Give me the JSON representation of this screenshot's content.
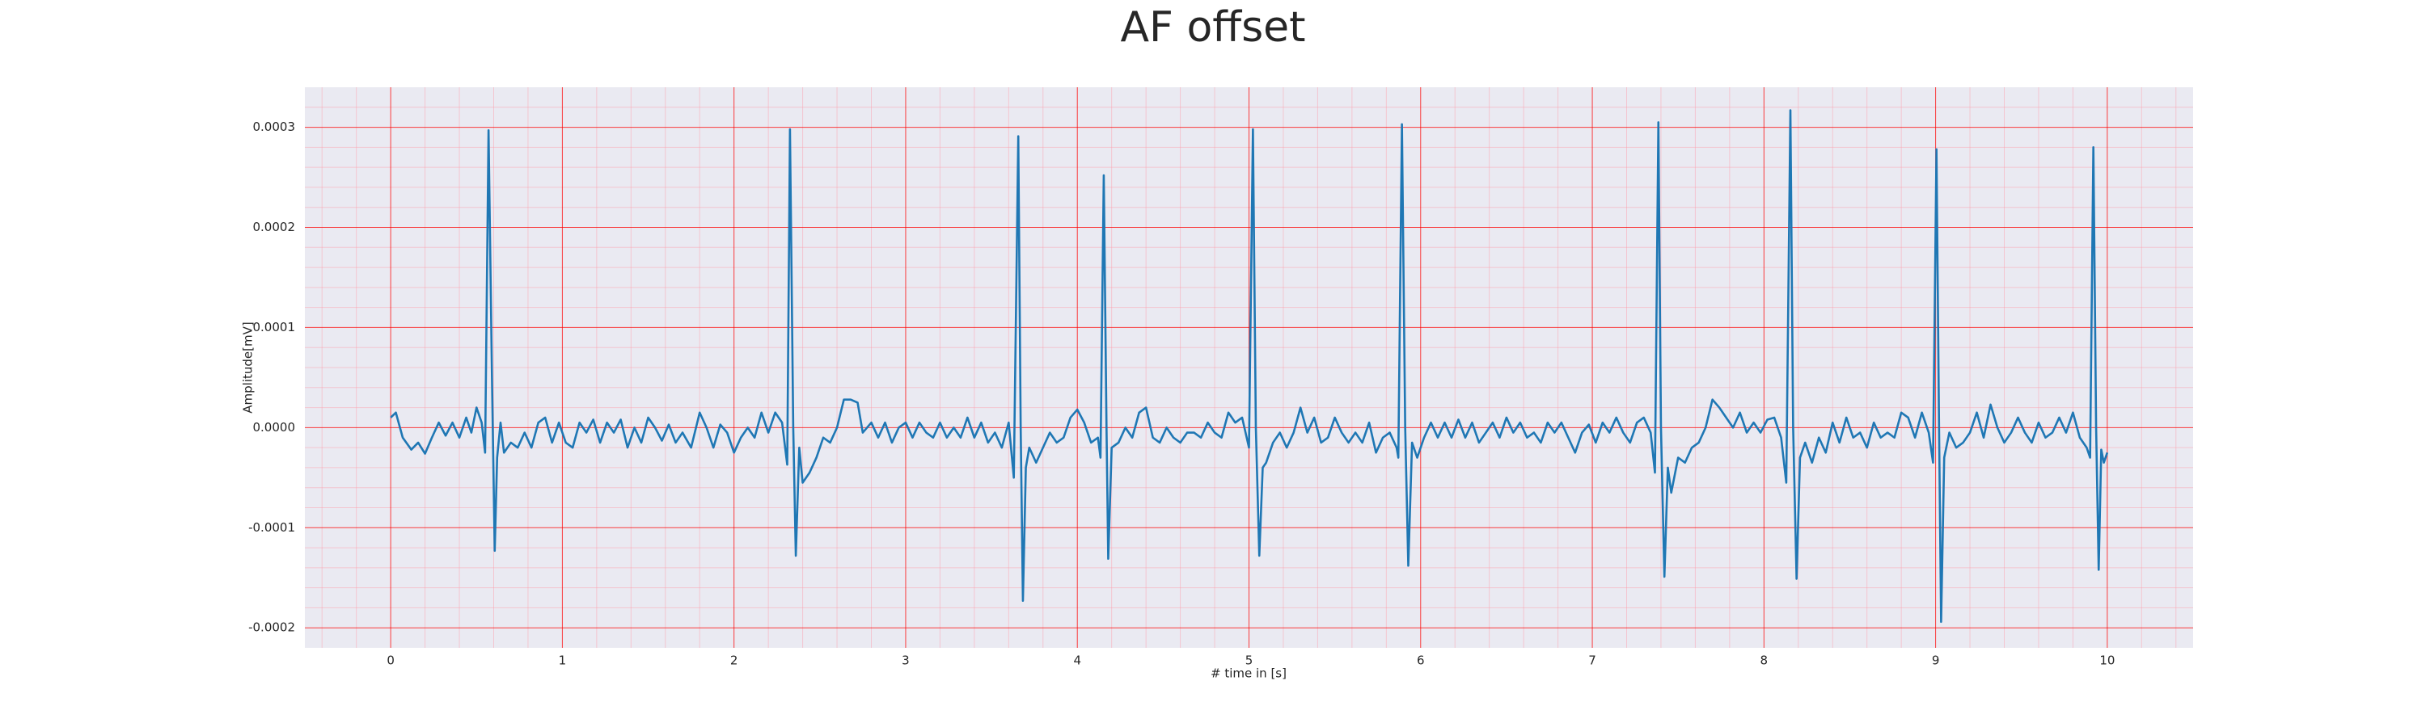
{
  "chart_data": {
    "type": "line",
    "title": "AF offset",
    "x_label": "# time in [s]",
    "y_label": "Amplitude[mV]",
    "color": "#1f77b4",
    "grid": true,
    "minor_grid": true,
    "xlim": [
      -0.5,
      10.5
    ],
    "ylim": [
      -0.00022,
      0.00034
    ],
    "xticks": [
      0,
      1,
      2,
      3,
      4,
      5,
      6,
      7,
      8,
      9,
      10
    ],
    "yticks": [
      -0.0002,
      -0.0001,
      {
        "value": 0,
        "label": "0.0000"
      },
      0.0001,
      0.0002,
      0.0003
    ],
    "x": [
      0,
      0.03,
      0.07,
      0.12,
      0.16,
      0.2,
      0.24,
      0.28,
      0.32,
      0.36,
      0.4,
      0.44,
      0.47,
      0.5,
      0.53,
      0.55,
      0.57,
      0.59,
      0.606,
      0.62,
      0.64,
      0.66,
      0.7,
      0.74,
      0.78,
      0.82,
      0.86,
      0.9,
      0.94,
      0.98,
      1.02,
      1.06,
      1.1,
      1.14,
      1.18,
      1.22,
      1.26,
      1.3,
      1.34,
      1.38,
      1.42,
      1.46,
      1.5,
      1.54,
      1.58,
      1.62,
      1.66,
      1.7,
      1.75,
      1.8,
      1.84,
      1.88,
      1.92,
      1.96,
      2.0,
      2.04,
      2.08,
      2.12,
      2.16,
      2.2,
      2.24,
      2.28,
      2.31,
      2.326,
      2.345,
      2.36,
      2.38,
      2.4,
      2.44,
      2.48,
      2.52,
      2.56,
      2.6,
      2.64,
      2.68,
      2.72,
      2.75,
      2.8,
      2.84,
      2.88,
      2.92,
      2.96,
      3.0,
      3.04,
      3.08,
      3.12,
      3.16,
      3.2,
      3.24,
      3.28,
      3.32,
      3.36,
      3.4,
      3.44,
      3.48,
      3.52,
      3.56,
      3.6,
      3.63,
      3.656,
      3.67,
      3.683,
      3.7,
      3.72,
      3.76,
      3.8,
      3.84,
      3.88,
      3.92,
      3.96,
      4.0,
      4.04,
      4.08,
      4.12,
      4.135,
      4.154,
      4.17,
      4.18,
      4.2,
      4.24,
      4.28,
      4.32,
      4.36,
      4.4,
      4.44,
      4.48,
      4.52,
      4.56,
      4.6,
      4.64,
      4.68,
      4.72,
      4.76,
      4.8,
      4.84,
      4.88,
      4.92,
      4.96,
      5.0,
      5.023,
      5.04,
      5.06,
      5.08,
      5.1,
      5.14,
      5.18,
      5.22,
      5.26,
      5.3,
      5.34,
      5.38,
      5.42,
      5.46,
      5.5,
      5.54,
      5.58,
      5.62,
      5.66,
      5.7,
      5.74,
      5.78,
      5.82,
      5.86,
      5.87,
      5.891,
      5.91,
      5.928,
      5.95,
      5.98,
      6.02,
      6.06,
      6.1,
      6.14,
      6.18,
      6.22,
      6.26,
      6.3,
      6.34,
      6.38,
      6.42,
      6.46,
      6.5,
      6.54,
      6.58,
      6.62,
      6.66,
      6.7,
      6.74,
      6.78,
      6.82,
      6.86,
      6.9,
      6.94,
      6.98,
      7.02,
      7.06,
      7.1,
      7.14,
      7.18,
      7.22,
      7.26,
      7.3,
      7.34,
      7.365,
      7.385,
      7.4,
      7.42,
      7.44,
      7.46,
      7.5,
      7.54,
      7.58,
      7.62,
      7.66,
      7.7,
      7.74,
      7.78,
      7.82,
      7.86,
      7.9,
      7.94,
      7.98,
      8.02,
      8.06,
      8.1,
      8.13,
      8.154,
      8.17,
      8.19,
      8.21,
      8.24,
      8.28,
      8.32,
      8.36,
      8.4,
      8.44,
      8.48,
      8.52,
      8.56,
      8.6,
      8.64,
      8.68,
      8.72,
      8.76,
      8.8,
      8.84,
      8.88,
      8.92,
      8.96,
      8.985,
      9.005,
      9.02,
      9.032,
      9.05,
      9.08,
      9.12,
      9.16,
      9.2,
      9.24,
      9.28,
      9.32,
      9.36,
      9.4,
      9.44,
      9.48,
      9.52,
      9.56,
      9.6,
      9.64,
      9.68,
      9.72,
      9.76,
      9.8,
      9.84,
      9.88,
      9.9,
      9.919,
      9.935,
      9.95,
      9.965,
      9.98,
      10.0
    ],
    "values": [
      1e-05,
      1.5e-05,
      -1e-05,
      -2.2e-05,
      -1.5e-05,
      -2.6e-05,
      -1e-05,
      5e-06,
      -8e-06,
      5e-06,
      -1e-05,
      1e-05,
      -5e-06,
      2e-05,
      5e-06,
      -2.5e-05,
      0.000297,
      5e-05,
      -0.000123,
      -3e-05,
      5e-06,
      -2.5e-05,
      -1.5e-05,
      -2e-05,
      -5e-06,
      -2e-05,
      5e-06,
      1e-05,
      -1.5e-05,
      5e-06,
      -1.5e-05,
      -2e-05,
      5e-06,
      -5e-06,
      8e-06,
      -1.5e-05,
      5e-06,
      -5e-06,
      8e-06,
      -2e-05,
      0,
      -1.5e-05,
      1e-05,
      0,
      -1.3e-05,
      3e-06,
      -1.5e-05,
      -5e-06,
      -2e-05,
      1.5e-05,
      0,
      -2e-05,
      3e-06,
      -5e-06,
      -2.5e-05,
      -1e-05,
      0,
      -1e-05,
      1.5e-05,
      -5e-06,
      1.5e-05,
      5e-06,
      -3.7e-05,
      0.000298,
      0,
      -0.000128,
      -2e-05,
      -5.5e-05,
      -4.5e-05,
      -3e-05,
      -1e-05,
      -1.5e-05,
      0,
      2.8e-05,
      2.8e-05,
      2.5e-05,
      -5e-06,
      5e-06,
      -1e-05,
      5e-06,
      -1.5e-05,
      0,
      5e-06,
      -1e-05,
      5e-06,
      -5e-06,
      -1e-05,
      5e-06,
      -1e-05,
      0,
      -1e-05,
      1e-05,
      -1e-05,
      5e-06,
      -1.5e-05,
      -5e-06,
      -2e-05,
      5e-06,
      -5e-05,
      0.000291,
      0,
      -0.000173,
      -4e-05,
      -2e-05,
      -3.5e-05,
      -2e-05,
      -5e-06,
      -1.5e-05,
      -1e-05,
      1e-05,
      1.8e-05,
      5e-06,
      -1.5e-05,
      -1e-05,
      -3e-05,
      0.000252,
      0,
      -0.000131,
      -2e-05,
      -1.5e-05,
      0,
      -1e-05,
      1.5e-05,
      2e-05,
      -1e-05,
      -1.5e-05,
      0,
      -1e-05,
      -1.5e-05,
      -5e-06,
      -5e-06,
      -1e-05,
      5e-06,
      -5e-06,
      -1e-05,
      1.5e-05,
      5e-06,
      1e-05,
      -2e-05,
      0.000298,
      0,
      -0.000128,
      -4e-05,
      -3.5e-05,
      -1.5e-05,
      -5e-06,
      -2e-05,
      -5e-06,
      2e-05,
      -5e-06,
      1e-05,
      -1.5e-05,
      -1e-05,
      1e-05,
      -5e-06,
      -1.5e-05,
      -5e-06,
      -1.5e-05,
      5e-06,
      -2.5e-05,
      -1e-05,
      -5e-06,
      -2e-05,
      -3e-05,
      0.000303,
      0,
      -0.000138,
      -1.5e-05,
      -3e-05,
      -1e-05,
      5e-06,
      -1e-05,
      5e-06,
      -1e-05,
      8e-06,
      -1e-05,
      5e-06,
      -1.5e-05,
      -5e-06,
      5e-06,
      -1e-05,
      1e-05,
      -5e-06,
      5e-06,
      -1e-05,
      -5e-06,
      -1.5e-05,
      5e-06,
      -5e-06,
      5e-06,
      -1e-05,
      -2.5e-05,
      -5e-06,
      3e-06,
      -1.5e-05,
      5e-06,
      -5e-06,
      1e-05,
      -5e-06,
      -1.5e-05,
      5e-06,
      1e-05,
      -5e-06,
      -4.5e-05,
      0.000305,
      0,
      -0.000149,
      -4e-05,
      -6.5e-05,
      -3e-05,
      -3.5e-05,
      -2e-05,
      -1.5e-05,
      0,
      2.8e-05,
      2e-05,
      1e-05,
      0,
      1.5e-05,
      -5e-06,
      5e-06,
      -5e-06,
      8e-06,
      1e-05,
      -1e-05,
      -5.5e-05,
      0.000317,
      0,
      -0.000151,
      -3e-05,
      -1.5e-05,
      -3.5e-05,
      -1e-05,
      -2.5e-05,
      5e-06,
      -1.5e-05,
      1e-05,
      -1e-05,
      -5e-06,
      -2e-05,
      5e-06,
      -1e-05,
      -5e-06,
      -1e-05,
      1.5e-05,
      1e-05,
      -1e-05,
      1.5e-05,
      -5e-06,
      -3.5e-05,
      0.000278,
      0,
      -0.000194,
      -3e-05,
      -5e-06,
      -2e-05,
      -1.5e-05,
      -5e-06,
      1.5e-05,
      -1e-05,
      2.3e-05,
      0,
      -1.5e-05,
      -5e-06,
      1e-05,
      -5e-06,
      -1.5e-05,
      5e-06,
      -1e-05,
      -5e-06,
      1e-05,
      -5e-06,
      1.5e-05,
      -1e-05,
      -2e-05,
      -3e-05,
      0.00028,
      0,
      -0.000142,
      -2.2e-05,
      -3.5e-05,
      -2.5e-05
    ]
  }
}
